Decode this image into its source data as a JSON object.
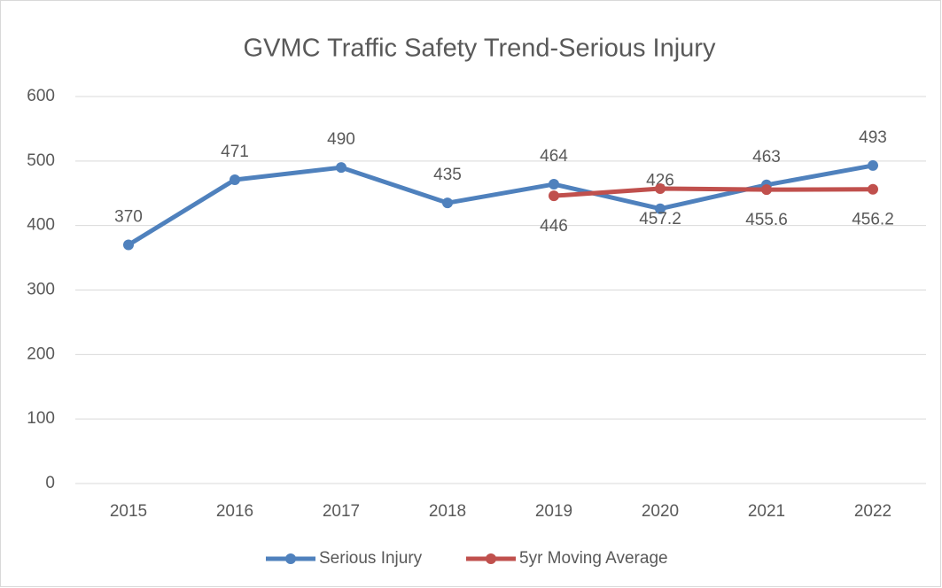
{
  "chart_data": {
    "type": "line",
    "title": "GVMC  Traffic Safety Trend-Serious Injury",
    "categories": [
      "2015",
      "2016",
      "2017",
      "2018",
      "2019",
      "2020",
      "2021",
      "2022"
    ],
    "series": [
      {
        "name": "Serious Injury",
        "color": "#4f81bd",
        "values": [
          370,
          471,
          490,
          435,
          464,
          426,
          463,
          493
        ]
      },
      {
        "name": "5yr Moving Average",
        "color": "#c0504d",
        "values": [
          null,
          null,
          null,
          null,
          446,
          457.2,
          455.6,
          456.2
        ]
      }
    ],
    "ylim": [
      0,
      600
    ],
    "yticks": [
      0,
      100,
      200,
      300,
      400,
      500,
      600
    ],
    "grid": true,
    "legend": "bottom"
  }
}
